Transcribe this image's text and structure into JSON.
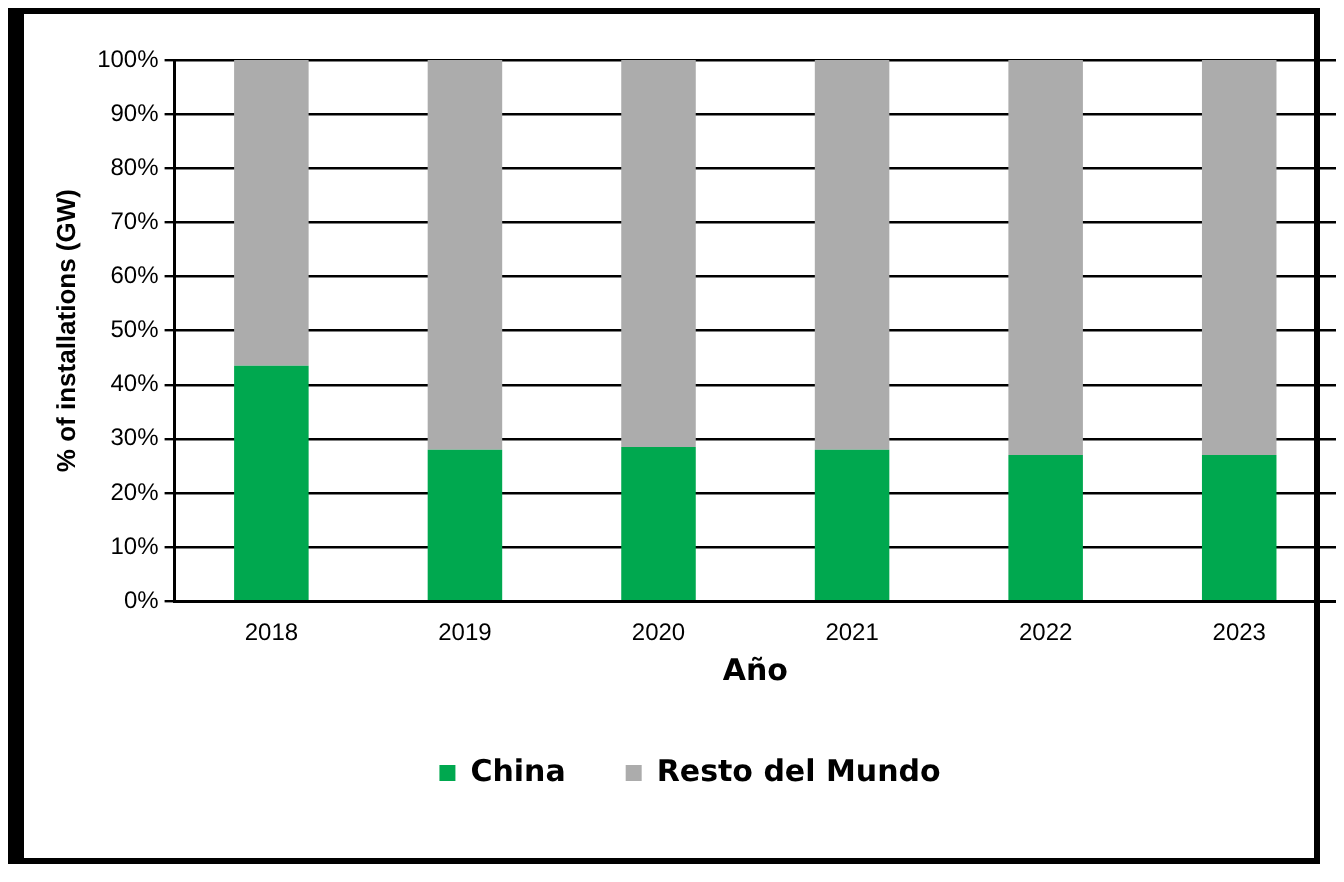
{
  "chart_data": {
    "type": "bar",
    "stacked": true,
    "xlabel": "Año",
    "ylabel": "% of installations (GW)",
    "categories": [
      "2018",
      "2019",
      "2020",
      "2021",
      "2022",
      "2023"
    ],
    "series": [
      {
        "name": "China",
        "color": "#00a84f",
        "values": [
          43.5,
          28,
          28.5,
          28,
          27,
          27
        ]
      },
      {
        "name": "Resto del Mundo",
        "color": "#acacac",
        "values": [
          56.5,
          72,
          71.5,
          72,
          73,
          73
        ]
      }
    ],
    "ylim": [
      0,
      100
    ],
    "yticks": [
      {
        "value": 0,
        "label": "0%"
      },
      {
        "value": 10,
        "label": "10%"
      },
      {
        "value": 20,
        "label": "20%"
      },
      {
        "value": 30,
        "label": "30%"
      },
      {
        "value": 40,
        "label": "40%"
      },
      {
        "value": 50,
        "label": "50%"
      },
      {
        "value": 60,
        "label": "60%"
      },
      {
        "value": 70,
        "label": "70%"
      },
      {
        "value": 80,
        "label": "80%"
      },
      {
        "value": 90,
        "label": "90%"
      },
      {
        "value": 100,
        "label": "100%"
      }
    ],
    "grid": "y",
    "legend": "bottom"
  }
}
